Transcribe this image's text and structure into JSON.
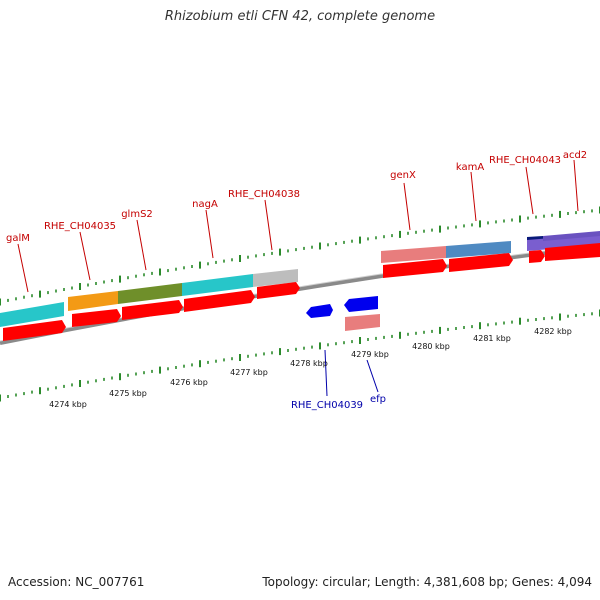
{
  "title": "Rhizobium etli CFN 42, complete genome",
  "footer": {
    "accession": "Accession: NC_007761",
    "summary": "Topology: circular; Length: 4,381,608 bp; Genes: 4,094"
  },
  "colors": {
    "backbone": "#8a8a8a",
    "forward_label": "#c40000",
    "reverse_label": "#0000aa",
    "tick": "#2b8a2b",
    "cds": "#ff0000",
    "reverse_cds": "#0000ee"
  },
  "scale": {
    "unit": "kbp"
  },
  "tick_labels": [
    "4274 kbp",
    "4275 kbp",
    "4276 kbp",
    "4277 kbp",
    "4278 kbp",
    "4279 kbp",
    "4280 kbp",
    "4281 kbp",
    "4282 kbp"
  ],
  "forward_labels": [
    "galM",
    "RHE_CH04035",
    "glmS2",
    "nagA",
    "RHE_CH04038",
    "genX",
    "kamA",
    "RHE_CH04043",
    "acd2"
  ],
  "reverse_labels": [
    "RHE_CH04039",
    "efp"
  ]
}
